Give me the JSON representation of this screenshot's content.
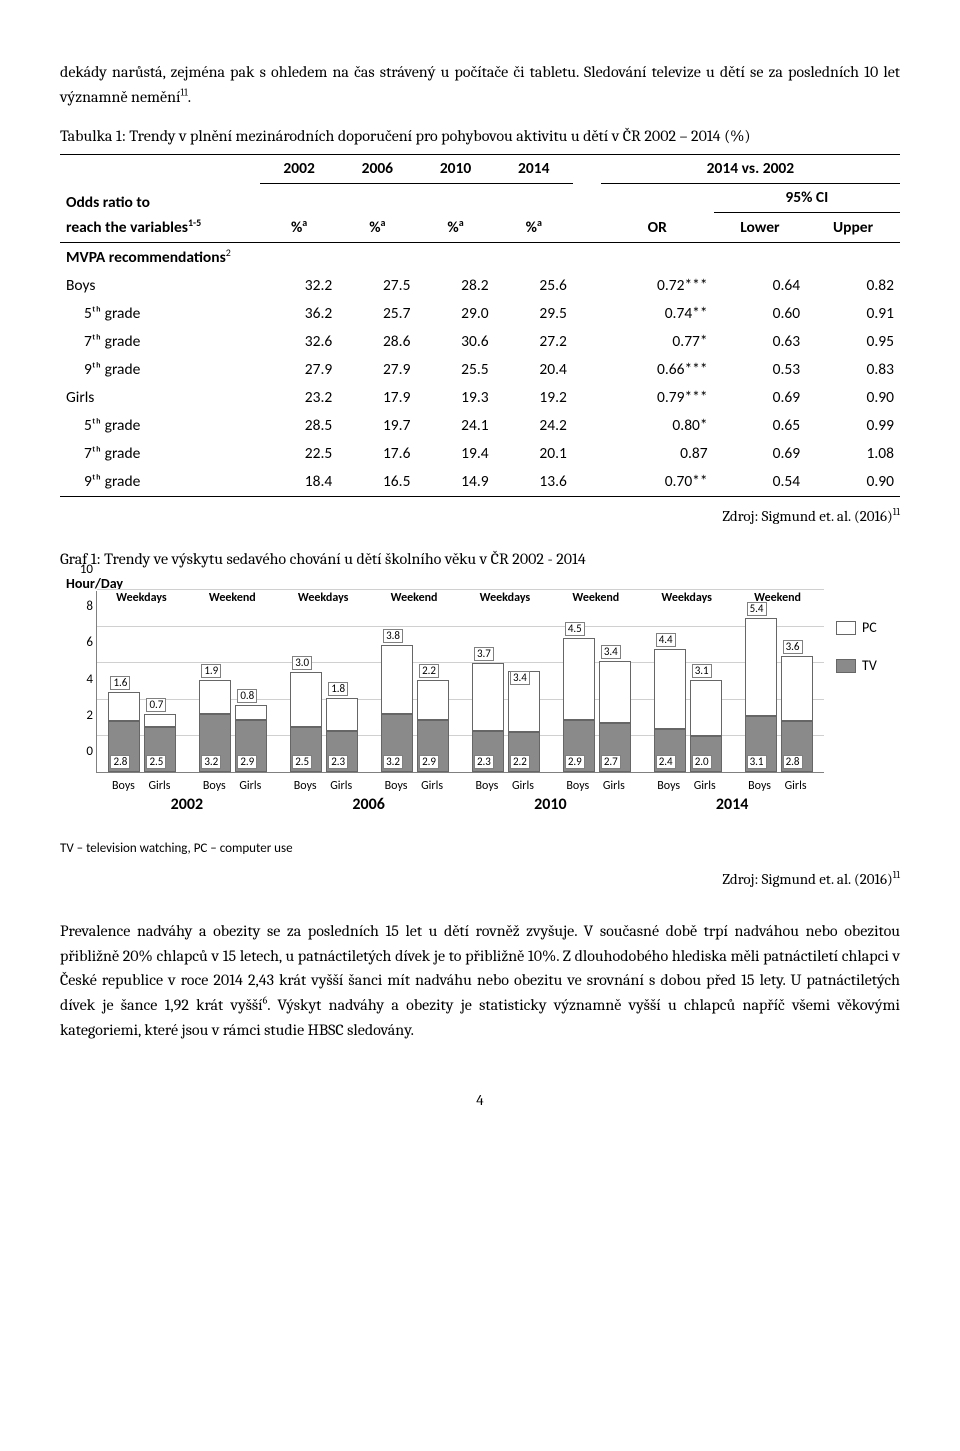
{
  "text": {
    "intro_p1": "dekády narůstá, zejména pak s ohledem na čas strávený u počítače či tabletu. Sledování televize u dětí se za posledních 10 let významně nemění",
    "intro_sup": "11",
    "intro_period": ".",
    "table_caption_pre": "Tabulka 1: Trendy v plnění mezinárodních doporučení pro pohybovou aktivitu u dětí v ČR 2002 – 2014 (%)",
    "source1": "Zdroj: Sigmund et. al. (2016)",
    "source1_sup": "11",
    "chart_caption": "Graf 1: Trendy ve výskytu sedavého chování u dětí školního věku v ČR 2002 - 2014",
    "source2": "Zdroj: Sigmund et. al. (2016)",
    "source2_sup": "11",
    "para2a": "Prevalence nadváhy a obezity se za posledních 15 let u dětí rovněž zvyšuje. V současné době trpí nadváhou nebo obezitou přibližně 20% chlapců v 15 letech, u patnáctiletých dívek je to přibližně 10%. Z dlouhodobého hlediska měli patnáctiletí chlapci v České republice v roce 2014 2,43 krát vyšší šanci mít nadváhu nebo obezitu ve srovnání s dobou před 15 lety. U patnáctiletých dívek je šance 1,92 krát vyšší",
    "para2_sup": "6",
    "para2b": ". Výskyt nadváhy a obezity je statisticky významně vyšší u chlapců napříč všemi věkovými kategoriemi, které jsou v rámci studie HBSC sledovány.",
    "page_num": "4"
  },
  "table": {
    "header": {
      "left_a": "Odds ratio to",
      "left_b": "reach the variables",
      "left_sup": "1-5",
      "y2002": "2002",
      "y2006": "2006",
      "y2010": "2010",
      "y2014": "2014",
      "vs": "2014 vs. 2002",
      "pct": "%",
      "pct_sup": "a",
      "or": "OR",
      "lower": "Lower",
      "upper": "Upper",
      "ci": "95% CI"
    },
    "section_label": "MVPA recommendations",
    "section_sup": "2",
    "rows": [
      {
        "label": "Boys",
        "indent": 0,
        "v": [
          "32.2",
          "27.5",
          "28.2",
          "25.6",
          "0.72***",
          "0.64",
          "0.82"
        ]
      },
      {
        "label": "5ᵗʰ grade",
        "indent": 1,
        "v": [
          "36.2",
          "25.7",
          "29.0",
          "29.5",
          "0.74**",
          "0.60",
          "0.91"
        ]
      },
      {
        "label": "7ᵗʰ grade",
        "indent": 1,
        "v": [
          "32.6",
          "28.6",
          "30.6",
          "27.2",
          "0.77*",
          "0.63",
          "0.95"
        ]
      },
      {
        "label": "9ᵗʰ grade",
        "indent": 1,
        "v": [
          "27.9",
          "27.9",
          "25.5",
          "20.4",
          "0.66***",
          "0.53",
          "0.83"
        ]
      },
      {
        "label": "Girls",
        "indent": 0,
        "v": [
          "23.2",
          "17.9",
          "19.3",
          "19.2",
          "0.79***",
          "0.69",
          "0.90"
        ]
      },
      {
        "label": "5ᵗʰ grade",
        "indent": 1,
        "v": [
          "28.5",
          "19.7",
          "24.1",
          "24.2",
          "0.80*",
          "0.65",
          "0.99"
        ]
      },
      {
        "label": "7ᵗʰ grade",
        "indent": 1,
        "v": [
          "22.5",
          "17.6",
          "19.4",
          "20.1",
          "0.87",
          "0.69",
          "1.08"
        ]
      },
      {
        "label": "9ᵗʰ grade",
        "indent": 1,
        "v": [
          "18.4",
          "16.5",
          "14.9",
          "13.6",
          "0.70**",
          "0.54",
          "0.90"
        ]
      }
    ]
  },
  "chart": {
    "y_title": "Hour/Day",
    "y_max": 10,
    "y_ticks": [
      0,
      2,
      4,
      6,
      8,
      10
    ],
    "footnote": "TV – television watching, PC – computer use",
    "legend": [
      {
        "label": "PC",
        "color": "#ffffff",
        "class": "pc"
      },
      {
        "label": "TV",
        "color": "#8a8a8a",
        "class": "tv"
      }
    ],
    "category_labels": [
      "Weekdays",
      "Weekend",
      "Weekdays",
      "Weekend",
      "Weekdays",
      "Weekend",
      "Weekdays",
      "Weekend"
    ],
    "groups": [
      {
        "year": "2002",
        "day": "Weekdays",
        "bg": "Boys",
        "tv": 2.8,
        "pc": 1.6,
        "tv_lbl": "2.8",
        "pc_lbl": "1.6",
        "pc_lbl_pos": "top"
      },
      {
        "year": "2002",
        "day": "Weekdays",
        "bg": "Girls",
        "tv": 2.5,
        "pc": 0.7,
        "tv_lbl": "2.5",
        "pc_lbl": "0.7",
        "pc_lbl_pos": "top"
      },
      {
        "year": "2002",
        "day": "Weekend",
        "bg": "Boys",
        "tv": 3.2,
        "pc": 1.9,
        "tv_lbl": "3.2",
        "pc_lbl": "1.9",
        "pc_lbl_pos": "top"
      },
      {
        "year": "2002",
        "day": "Weekend",
        "bg": "Girls",
        "tv": 2.9,
        "pc": 0.8,
        "tv_lbl": "2.9",
        "pc_lbl": "0.8",
        "pc_lbl_pos": "top"
      },
      {
        "year": "2006",
        "day": "Weekdays",
        "bg": "Boys",
        "tv": 2.5,
        "pc": 3.0,
        "tv_lbl": "2.5",
        "pc_lbl": "3.0",
        "pc_lbl_pos": "top"
      },
      {
        "year": "2006",
        "day": "Weekdays",
        "bg": "Girls",
        "tv": 2.3,
        "pc": 1.8,
        "tv_lbl": "2.3",
        "pc_lbl": "1.8",
        "pc_lbl_pos": "top"
      },
      {
        "year": "2006",
        "day": "Weekend",
        "bg": "Boys",
        "tv": 3.2,
        "pc": 3.8,
        "tv_lbl": "3.2",
        "pc_lbl": "3.8",
        "pc_lbl_pos": "top"
      },
      {
        "year": "2006",
        "day": "Weekend",
        "bg": "Girls",
        "tv": 2.9,
        "pc": 2.2,
        "tv_lbl": "2.9",
        "pc_lbl": "2.2",
        "pc_lbl_pos": "top"
      },
      {
        "year": "2010",
        "day": "Weekdays",
        "bg": "Boys",
        "tv": 2.3,
        "pc": 3.7,
        "tv_lbl": "2.3",
        "pc_lbl": "3.7",
        "pc_lbl_pos": "top"
      },
      {
        "year": "2010",
        "day": "Weekdays",
        "bg": "Girls",
        "tv": 2.2,
        "pc": 3.4,
        "tv_lbl": "2.2",
        "pc_lbl": "3.4",
        "pc_lbl_pos": "in"
      },
      {
        "year": "2010",
        "day": "Weekend",
        "bg": "Boys",
        "tv": 2.9,
        "pc": 4.5,
        "tv_lbl": "2.9",
        "pc_lbl": "4.5",
        "pc_lbl_pos": "top"
      },
      {
        "year": "2010",
        "day": "Weekend",
        "bg": "Girls",
        "tv": 2.7,
        "pc": 3.4,
        "tv_lbl": "2.7",
        "pc_lbl": "3.4",
        "pc_lbl_pos": "top"
      },
      {
        "year": "2014",
        "day": "Weekdays",
        "bg": "Boys",
        "tv": 2.4,
        "pc": 4.4,
        "tv_lbl": "2.4",
        "pc_lbl": "4.4",
        "pc_lbl_pos": "top"
      },
      {
        "year": "2014",
        "day": "Weekdays",
        "bg": "Girls",
        "tv": 2.0,
        "pc": 3.1,
        "tv_lbl": "2.0",
        "pc_lbl": "3.1",
        "pc_lbl_pos": "top"
      },
      {
        "year": "2014",
        "day": "Weekend",
        "bg": "Boys",
        "tv": 3.1,
        "pc": 5.4,
        "tv_lbl": "3.1",
        "pc_lbl": "5.4",
        "pc_lbl_pos": "top"
      },
      {
        "year": "2014",
        "day": "Weekend",
        "bg": "Girls",
        "tv": 2.8,
        "pc": 3.6,
        "tv_lbl": "2.8",
        "pc_lbl": "3.6",
        "pc_lbl_pos": "top"
      }
    ],
    "colors": {
      "tv": "#8a8a8a",
      "pc": "#ffffff",
      "grid": "#d0d0d0",
      "axis": "#808080",
      "label_border": "#808080"
    }
  }
}
